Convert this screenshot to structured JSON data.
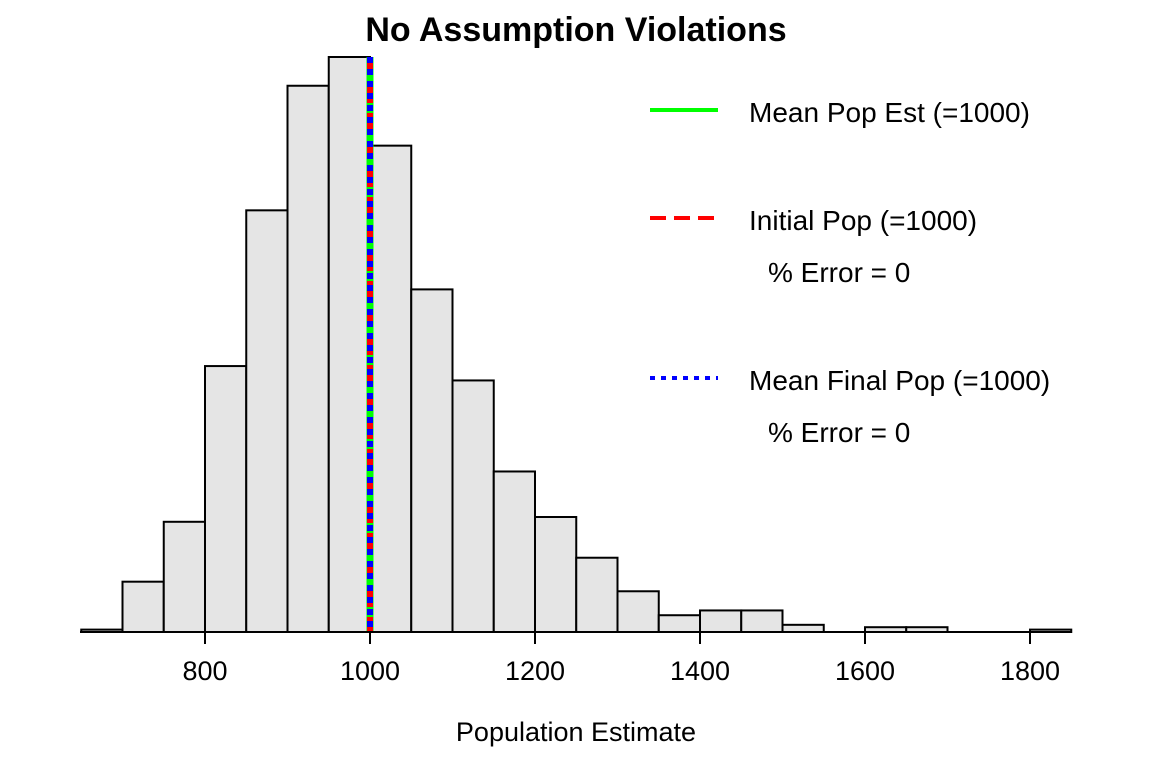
{
  "chart_data": {
    "type": "bar",
    "title": "No Assumption Violations",
    "xlabel": "Population Estimate",
    "ylabel": "",
    "xlim": [
      650,
      1850
    ],
    "x_ticks": [
      "800",
      "1000",
      "1200",
      "1400",
      "1600",
      "1800"
    ],
    "x_tick_values": [
      800,
      1000,
      1200,
      1400,
      1600,
      1800
    ],
    "y_axis_shown": false,
    "bin_width": 50,
    "bins": [
      {
        "start": 650,
        "end": 700,
        "value": 1
      },
      {
        "start": 700,
        "end": 750,
        "value": 21
      },
      {
        "start": 750,
        "end": 800,
        "value": 46
      },
      {
        "start": 800,
        "end": 850,
        "value": 111
      },
      {
        "start": 850,
        "end": 900,
        "value": 176
      },
      {
        "start": 900,
        "end": 950,
        "value": 228
      },
      {
        "start": 950,
        "end": 1000,
        "value": 240
      },
      {
        "start": 1000,
        "end": 1050,
        "value": 203
      },
      {
        "start": 1050,
        "end": 1100,
        "value": 143
      },
      {
        "start": 1100,
        "end": 1150,
        "value": 105
      },
      {
        "start": 1150,
        "end": 1200,
        "value": 67
      },
      {
        "start": 1200,
        "end": 1250,
        "value": 48
      },
      {
        "start": 1250,
        "end": 1300,
        "value": 31
      },
      {
        "start": 1300,
        "end": 1350,
        "value": 17
      },
      {
        "start": 1350,
        "end": 1400,
        "value": 7
      },
      {
        "start": 1400,
        "end": 1450,
        "value": 9
      },
      {
        "start": 1450,
        "end": 1500,
        "value": 9
      },
      {
        "start": 1500,
        "end": 1550,
        "value": 3
      },
      {
        "start": 1550,
        "end": 1600,
        "value": 0
      },
      {
        "start": 1600,
        "end": 1650,
        "value": 2
      },
      {
        "start": 1650,
        "end": 1700,
        "value": 2
      },
      {
        "start": 1700,
        "end": 1750,
        "value": 0
      },
      {
        "start": 1750,
        "end": 1800,
        "value": 0
      },
      {
        "start": 1800,
        "end": 1850,
        "value": 1
      }
    ],
    "ylim": [
      0,
      240
    ],
    "vertical_lines": [
      {
        "name": "Mean Pop Est (=1000)",
        "x": 1000,
        "color": "#00ff00",
        "style": "solid"
      },
      {
        "name": "Initial Pop (=1000)",
        "x": 1000,
        "color": "#ff0000",
        "style": "dashed"
      },
      {
        "name": "Mean Final Pop (=1000)",
        "x": 1000,
        "color": "#0000ff",
        "style": "dotted"
      }
    ],
    "legend": {
      "position": "top-right",
      "entries": [
        {
          "label": "Mean Pop Est (=1000)",
          "sublabel": "",
          "color": "#00ff00",
          "style": "solid"
        },
        {
          "label": "Initial Pop (=1000)",
          "sublabel": "% Error = 0",
          "color": "#ff0000",
          "style": "dashed"
        },
        {
          "label": "Mean Final Pop (=1000)",
          "sublabel": "% Error = 0",
          "color": "#0000ff",
          "style": "dotted"
        }
      ]
    },
    "grid": false
  }
}
